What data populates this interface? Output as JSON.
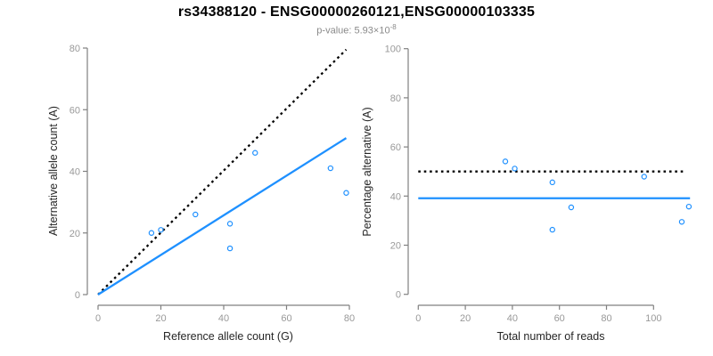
{
  "header": {
    "title": "rs34388120 - ENSG00000260121,ENSG00000103335",
    "p_value_text": "p-value: 5.93×10",
    "p_value_exponent": "-8"
  },
  "colors": {
    "accent_blue": "#1E90FF",
    "dotted_line_black": "#000000",
    "axis_line_gray": "#808080",
    "tick_label_gray": "#999999",
    "axis_title_dark": "#262626",
    "subtitle_gray": "#8a8a8a"
  },
  "chart_data": [
    {
      "type": "scatter",
      "title": "",
      "xlabel": "Reference allele count (G)",
      "ylabel": "Alternative allele count (A)",
      "xlim": [
        0,
        80
      ],
      "ylim": [
        0,
        80
      ],
      "xticks": [
        0,
        20,
        40,
        60,
        80
      ],
      "yticks": [
        0,
        20,
        40,
        60,
        80
      ],
      "grid": false,
      "legend": false,
      "points": [
        [
          17,
          20
        ],
        [
          20,
          21
        ],
        [
          31,
          26
        ],
        [
          42,
          15
        ],
        [
          42,
          23
        ],
        [
          50,
          46
        ],
        [
          74,
          41
        ],
        [
          79,
          33
        ]
      ],
      "lines": [
        {
          "name": "identity-line",
          "style": "dotted",
          "color": "#000000",
          "x1": 0,
          "y1": 0,
          "x2": 79,
          "y2": 79.5
        },
        {
          "name": "fit-line",
          "style": "solid",
          "color": "#1E90FF",
          "x1": 0,
          "y1": 0,
          "x2": 79,
          "y2": 50.8
        }
      ]
    },
    {
      "type": "scatter",
      "title": "",
      "xlabel": "Total number of reads",
      "ylabel": "Percentage alternative (A)",
      "xlim": [
        0,
        115
      ],
      "ylim": [
        0,
        100
      ],
      "xticks": [
        0,
        20,
        40,
        60,
        80,
        100
      ],
      "yticks": [
        0,
        20,
        40,
        60,
        80,
        100
      ],
      "grid": false,
      "legend": false,
      "points": [
        [
          37,
          54.1
        ],
        [
          41,
          51.2
        ],
        [
          57,
          45.6
        ],
        [
          57,
          26.3
        ],
        [
          65,
          35.4
        ],
        [
          96,
          47.9
        ],
        [
          112,
          29.5
        ],
        [
          115,
          35.7
        ]
      ],
      "lines": [
        {
          "name": "expected-50pct-line",
          "style": "dotted",
          "color": "#000000",
          "x1": 0,
          "y1": 50,
          "x2": 113.5,
          "y2": 50
        },
        {
          "name": "mean-percentage-line",
          "style": "solid",
          "color": "#1E90FF",
          "x1": 0,
          "y1": 39.1,
          "x2": 115.5,
          "y2": 39.1
        }
      ]
    }
  ]
}
